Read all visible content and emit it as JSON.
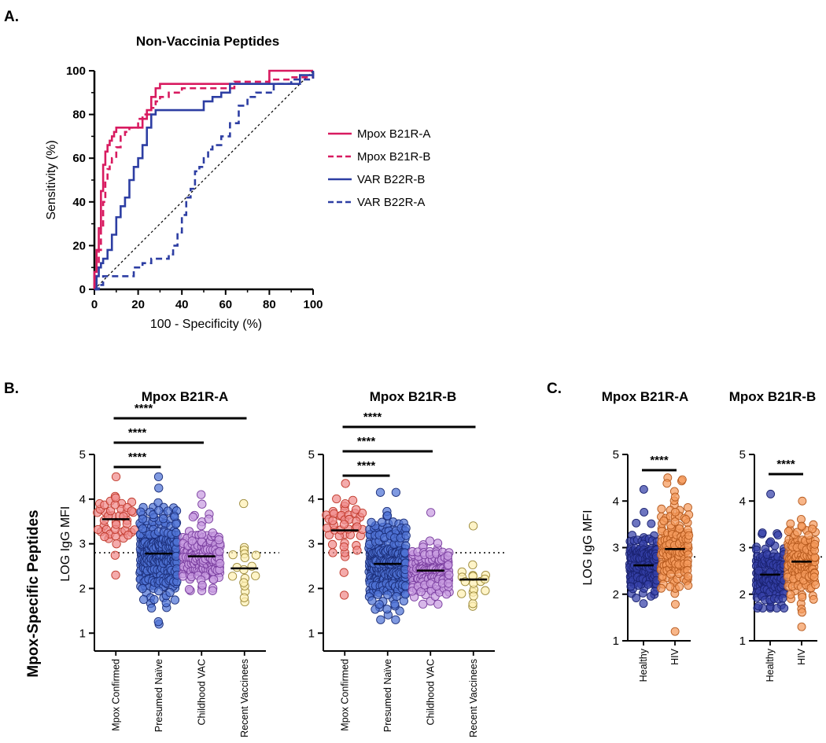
{
  "panels": {
    "a": "A.",
    "b": "B.",
    "c": "C."
  },
  "colors": {
    "mpox": "#d81b60",
    "var": "#2d3ea3",
    "red_fill": "#f08a8a",
    "red_stroke": "#c0392b",
    "blue_fill": "#4f73d6",
    "blue_stroke": "#1c2f7a",
    "purple_fill": "#c79be0",
    "purple_stroke": "#7b3fa0",
    "yellow_fill": "#fff0b3",
    "yellow_stroke": "#9c8a3a",
    "navy_fill": "#3440a8",
    "navy_stroke": "#1a2270",
    "orange_fill": "#f59a5c",
    "orange_stroke": "#b65a1e"
  },
  "chart_data": [
    {
      "id": "roc",
      "type": "line",
      "title": "Non-Vaccinia Peptides",
      "xlabel": "100 - Specificity (%)",
      "ylabel": "Sensitivity (%)",
      "xlim": [
        0,
        100
      ],
      "ylim": [
        0,
        100
      ],
      "xticks": [
        "0",
        "20",
        "40",
        "60",
        "80",
        "100"
      ],
      "yticks": [
        "0",
        "20",
        "40",
        "60",
        "80",
        "100"
      ],
      "legend_position": "right",
      "reference_line": "diagonal",
      "series": [
        {
          "name": "Mpox B21R-A",
          "style": "solid",
          "color": "#d81b60",
          "x": [
            0,
            0,
            1,
            1,
            2,
            2,
            3,
            3,
            4,
            4,
            5,
            5,
            6,
            7,
            8,
            9,
            10,
            11,
            12,
            14,
            16,
            18,
            20,
            22,
            24,
            26,
            28,
            30,
            34,
            40,
            50,
            60,
            70,
            80,
            90,
            100
          ],
          "y": [
            0,
            8,
            12,
            18,
            22,
            28,
            35,
            45,
            52,
            57,
            60,
            63,
            66,
            68,
            70,
            72,
            74,
            74,
            74,
            74,
            74,
            74,
            74,
            78,
            82,
            88,
            92,
            94,
            94,
            94,
            94,
            94,
            94,
            100,
            100,
            100
          ]
        },
        {
          "name": "Mpox B21R-B",
          "style": "dashed",
          "color": "#d81b60",
          "x": [
            0,
            0,
            1,
            2,
            3,
            4,
            5,
            6,
            7,
            8,
            10,
            12,
            14,
            16,
            20,
            22,
            26,
            28,
            30,
            34,
            40,
            50,
            60,
            64,
            70,
            80,
            90,
            100
          ],
          "y": [
            0,
            6,
            10,
            18,
            28,
            40,
            50,
            55,
            58,
            60,
            65,
            70,
            72,
            74,
            78,
            80,
            83,
            86,
            88,
            90,
            92,
            92,
            92,
            95,
            95,
            96,
            97,
            100
          ]
        },
        {
          "name": "VAR B22R-B",
          "style": "solid",
          "color": "#2d3ea3",
          "x": [
            0,
            1,
            2,
            3,
            4,
            6,
            8,
            10,
            12,
            14,
            16,
            18,
            20,
            22,
            24,
            26,
            28,
            30,
            32,
            36,
            40,
            46,
            50,
            54,
            58,
            62,
            66,
            70,
            80,
            90,
            94,
            100
          ],
          "y": [
            0,
            6,
            10,
            12,
            14,
            18,
            25,
            33,
            38,
            42,
            50,
            56,
            60,
            66,
            74,
            80,
            82,
            82,
            82,
            82,
            82,
            82,
            86,
            88,
            90,
            94,
            94,
            94,
            94,
            94,
            98,
            100
          ]
        },
        {
          "name": "VAR B22R-A",
          "style": "dashed",
          "color": "#2d3ea3",
          "x": [
            0,
            2,
            4,
            6,
            10,
            14,
            18,
            22,
            26,
            30,
            34,
            36,
            38,
            40,
            42,
            44,
            46,
            48,
            50,
            52,
            54,
            58,
            62,
            66,
            70,
            74,
            78,
            82,
            90,
            100
          ],
          "y": [
            0,
            2,
            6,
            6,
            6,
            6,
            10,
            12,
            14,
            14,
            16,
            20,
            26,
            34,
            42,
            46,
            54,
            56,
            60,
            64,
            66,
            70,
            76,
            84,
            88,
            90,
            90,
            94,
            96,
            100
          ]
        }
      ]
    },
    {
      "id": "b1",
      "type": "scatter",
      "title": "Mpox B21R-A",
      "ylabel": "LOG IgG MFI",
      "ylim": [
        0.6,
        5
      ],
      "yticks": [
        "1",
        "2",
        "3",
        "4",
        "5"
      ],
      "threshold": 2.8,
      "categories": [
        "Mpox Confirmed",
        "Presumed Naïve",
        "Childhood VAC",
        "Recent Vaccinees"
      ],
      "groups": [
        {
          "name": "Mpox Confirmed",
          "n": 45,
          "median": 3.55,
          "min": 2.3,
          "max": 4.5,
          "palette": "red"
        },
        {
          "name": "Presumed Naïve",
          "n": 320,
          "median": 2.78,
          "min": 1.2,
          "max": 4.5,
          "palette": "blue"
        },
        {
          "name": "Childhood VAC",
          "n": 170,
          "median": 2.72,
          "min": 1.95,
          "max": 4.1,
          "palette": "purple"
        },
        {
          "name": "Recent Vaccinees",
          "n": 18,
          "median": 2.45,
          "min": 1.7,
          "max": 3.9,
          "palette": "yellow"
        }
      ],
      "significance": [
        {
          "from": 0,
          "to": 1,
          "label": "****"
        },
        {
          "from": 0,
          "to": 2,
          "label": "****"
        },
        {
          "from": 0,
          "to": 3,
          "label": "****"
        }
      ]
    },
    {
      "id": "b2",
      "type": "scatter",
      "title": "Mpox B21R-B",
      "ylim": [
        0.6,
        5
      ],
      "yticks": [
        "1",
        "2",
        "3",
        "4",
        "5"
      ],
      "threshold": 2.8,
      "categories": [
        "Mpox Confirmed",
        "Presumed Naïve",
        "Childhood VAC",
        "Recent Vaccinees"
      ],
      "groups": [
        {
          "name": "Mpox Confirmed",
          "n": 45,
          "median": 3.3,
          "min": 1.85,
          "max": 4.35,
          "palette": "red"
        },
        {
          "name": "Presumed Naïve",
          "n": 320,
          "median": 2.55,
          "min": 1.3,
          "max": 4.15,
          "palette": "blue"
        },
        {
          "name": "Childhood VAC",
          "n": 170,
          "median": 2.4,
          "min": 1.65,
          "max": 3.7,
          "palette": "purple"
        },
        {
          "name": "Recent Vaccinees",
          "n": 18,
          "median": 2.2,
          "min": 1.6,
          "max": 3.4,
          "palette": "yellow"
        }
      ],
      "significance": [
        {
          "from": 0,
          "to": 1,
          "label": "****"
        },
        {
          "from": 0,
          "to": 2,
          "label": "****"
        },
        {
          "from": 0,
          "to": 3,
          "label": "****"
        }
      ]
    },
    {
      "id": "c1",
      "type": "scatter",
      "title": "Mpox B21R-A",
      "ylabel": "LOG IgG MFI",
      "ylim": [
        1,
        5
      ],
      "yticks": [
        "1",
        "2",
        "3",
        "4",
        "5"
      ],
      "threshold": 2.8,
      "categories": [
        "Healthy",
        "HIV"
      ],
      "groups": [
        {
          "name": "Healthy",
          "n": 150,
          "median": 2.62,
          "min": 1.8,
          "max": 4.25,
          "palette": "navy"
        },
        {
          "name": "HIV",
          "n": 150,
          "median": 2.97,
          "min": 1.2,
          "max": 4.5,
          "palette": "orange"
        }
      ],
      "significance": [
        {
          "from": 0,
          "to": 1,
          "label": "****"
        }
      ]
    },
    {
      "id": "c2",
      "type": "scatter",
      "title": "Mpox B21R-B",
      "ylim": [
        1,
        5
      ],
      "yticks": [
        "1",
        "2",
        "3",
        "4",
        "5"
      ],
      "threshold": 2.8,
      "categories": [
        "Healthy",
        "HIV"
      ],
      "groups": [
        {
          "name": "Healthy",
          "n": 150,
          "median": 2.42,
          "min": 1.7,
          "max": 4.15,
          "palette": "navy"
        },
        {
          "name": "HIV",
          "n": 150,
          "median": 2.7,
          "min": 1.3,
          "max": 4.0,
          "palette": "orange"
        }
      ],
      "significance": [
        {
          "from": 0,
          "to": 1,
          "label": "****"
        }
      ]
    }
  ],
  "side_label": "Mpox-Specific Peptides"
}
